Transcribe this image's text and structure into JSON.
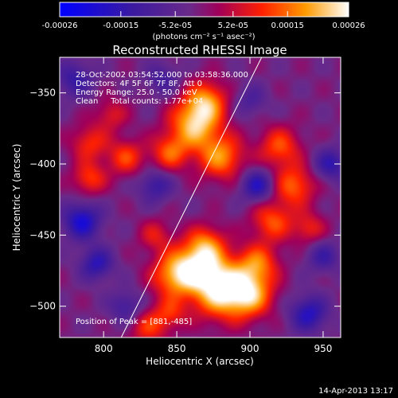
{
  "colorbar": {
    "tick_labels": [
      "-0.00026",
      "-0.00015",
      "-5.2e-05",
      "5.2e-05",
      "0.00015",
      "0.00026"
    ],
    "units_label": "(photons cm⁻² s⁻¹ asec⁻²)",
    "vmin": -0.00026,
    "vmax": 0.00026
  },
  "title": "Reconstructed RHESSI Image",
  "annotations": {
    "time_range": "28-Oct-2002 03:54:52.000 to 03:58:36.000",
    "detectors": "Detectors: 4F 5F 6F 7F 8F, Att 0",
    "energy": "Energy Range: 25.0 - 50.0 keV",
    "method_counts": "Clean     Total counts: 1.77e+04",
    "peak": "Position of Peak = [881,-485]"
  },
  "axes": {
    "xlabel": "Heliocentric X (arcsec)",
    "ylabel": "Heliocentric Y (arcsec)",
    "xlim": [
      770,
      962
    ],
    "ylim": [
      -522,
      -325
    ],
    "xticks": [
      800,
      850,
      900,
      950
    ],
    "xtick_labels": [
      "800",
      "850",
      "900",
      "950"
    ],
    "yticks": [
      -350,
      -400,
      -450,
      -500
    ],
    "ytick_labels": [
      "−350",
      "−400",
      "−450",
      "−500"
    ]
  },
  "limb_line": {
    "x": [
      812,
      908
    ],
    "y": [
      -522,
      -325
    ]
  },
  "sources": [
    {
      "x": 880,
      "y": -488,
      "amp": 1.0,
      "sigma": 14
    },
    {
      "x": 865,
      "y": -470,
      "amp": 0.75,
      "sigma": 12
    },
    {
      "x": 848,
      "y": -478,
      "amp": 0.7,
      "sigma": 11
    },
    {
      "x": 900,
      "y": -492,
      "amp": 0.7,
      "sigma": 11
    },
    {
      "x": 905,
      "y": -470,
      "amp": 0.6,
      "sigma": 10
    },
    {
      "x": 915,
      "y": -440,
      "amp": 0.55,
      "sigma": 10
    },
    {
      "x": 930,
      "y": -415,
      "amp": 0.6,
      "sigma": 10
    },
    {
      "x": 920,
      "y": -388,
      "amp": 0.55,
      "sigma": 10
    },
    {
      "x": 862,
      "y": -372,
      "amp": 0.85,
      "sigma": 12
    },
    {
      "x": 880,
      "y": -395,
      "amp": 0.7,
      "sigma": 11
    },
    {
      "x": 870,
      "y": -355,
      "amp": 0.65,
      "sigma": 10
    },
    {
      "x": 845,
      "y": -392,
      "amp": 0.55,
      "sigma": 9
    },
    {
      "x": 815,
      "y": -395,
      "amp": 0.5,
      "sigma": 9
    },
    {
      "x": 790,
      "y": -385,
      "amp": 0.45,
      "sigma": 9
    },
    {
      "x": 790,
      "y": -410,
      "amp": 0.5,
      "sigma": 8
    },
    {
      "x": 805,
      "y": -365,
      "amp": 0.35,
      "sigma": 8
    },
    {
      "x": 830,
      "y": -515,
      "amp": 0.45,
      "sigma": 9
    },
    {
      "x": 845,
      "y": -505,
      "amp": 0.4,
      "sigma": 8
    },
    {
      "x": 870,
      "y": -455,
      "amp": 0.45,
      "sigma": 9
    },
    {
      "x": 940,
      "y": -445,
      "amp": 0.4,
      "sigma": 8
    },
    {
      "x": 835,
      "y": -450,
      "amp": 0.35,
      "sigma": 8
    },
    {
      "x": 785,
      "y": -440,
      "amp": -0.7,
      "sigma": 9
    },
    {
      "x": 795,
      "y": -470,
      "amp": -0.55,
      "sigma": 8
    },
    {
      "x": 905,
      "y": -415,
      "amp": -0.6,
      "sigma": 8
    },
    {
      "x": 940,
      "y": -505,
      "amp": -0.6,
      "sigma": 9
    },
    {
      "x": 955,
      "y": -400,
      "amp": -0.5,
      "sigma": 8
    },
    {
      "x": 835,
      "y": -415,
      "amp": -0.45,
      "sigma": 8
    },
    {
      "x": 780,
      "y": -340,
      "amp": -0.45,
      "sigma": 9
    },
    {
      "x": 840,
      "y": -340,
      "amp": -0.35,
      "sigma": 8
    },
    {
      "x": 900,
      "y": -355,
      "amp": -0.3,
      "sigma": 8
    },
    {
      "x": 950,
      "y": -465,
      "amp": -0.4,
      "sigma": 8
    },
    {
      "x": 815,
      "y": -500,
      "amp": -0.4,
      "sigma": 8
    }
  ],
  "footer": {
    "timestamp": "14-Apr-2013 13:17"
  }
}
